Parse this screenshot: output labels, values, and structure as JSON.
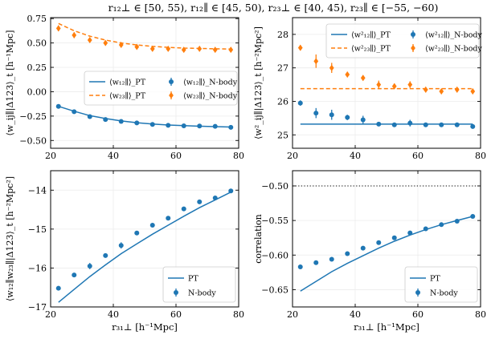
{
  "figure_title": "r₁₂⊥ ∈ [50, 55), r₁₂∥ ∈ [45, 50), r₂₃⊥ ∈ [40, 45), r₂₃∥ ∈ [−55, −60)",
  "colors": {
    "blue": "#1f77b4",
    "orange": "#ff7f0e",
    "grid": "#ececec",
    "axis": "#000000"
  },
  "chart_data": [
    {
      "id": "top-left",
      "type": "line",
      "ylabel": "⟨w_ij∥|Δ123⟩_t  [h⁻¹Mpc]",
      "xlabel": "",
      "xlim": [
        20,
        80
      ],
      "ylim": [
        -0.58,
        0.76
      ],
      "xticks": [
        20,
        40,
        60,
        80
      ],
      "xtick_labels": [
        "20",
        "40",
        "60",
        "80"
      ],
      "yticks": [
        -0.5,
        -0.25,
        0.0,
        0.25,
        0.5,
        0.75
      ],
      "ytick_labels": [
        "−0.50",
        "−0.25",
        "0.00",
        "0.25",
        "0.50",
        "0.75"
      ],
      "grid": true,
      "legend_position": "center-right",
      "legend_columns": 2,
      "x": [
        22.5,
        27.5,
        32.5,
        37.5,
        42.5,
        47.5,
        52.5,
        57.5,
        62.5,
        67.5,
        72.5,
        77.5
      ],
      "series": [
        {
          "name": "⟨w₁₂∥⟩_PT",
          "kind": "line",
          "dash": "solid",
          "color": "#1f77b4",
          "x": [
            22.5,
            27.5,
            32.5,
            37.5,
            42.5,
            47.5,
            52.5,
            57.5,
            62.5,
            67.5,
            72.5,
            77.5
          ],
          "values": [
            -0.15,
            -0.2,
            -0.245,
            -0.275,
            -0.3,
            -0.318,
            -0.332,
            -0.342,
            -0.348,
            -0.354,
            -0.358,
            -0.362
          ]
        },
        {
          "name": "⟨w₂₃∥⟩_PT",
          "kind": "line",
          "dash": "dashed",
          "color": "#ff7f0e",
          "x": [
            22.5,
            27.5,
            32.5,
            37.5,
            42.5,
            47.5,
            52.5,
            57.5,
            62.5,
            67.5,
            72.5,
            77.5
          ],
          "values": [
            0.7,
            0.625,
            0.57,
            0.53,
            0.5,
            0.48,
            0.465,
            0.455,
            0.448,
            0.444,
            0.44,
            0.438
          ]
        },
        {
          "name": "⟨w₁₂∥⟩_N-body",
          "kind": "points",
          "marker": "circle",
          "color": "#1f77b4",
          "x": [
            22.5,
            27.5,
            32.5,
            37.5,
            42.5,
            47.5,
            52.5,
            57.5,
            62.5,
            67.5,
            72.5,
            77.5
          ],
          "values": [
            -0.15,
            -0.205,
            -0.255,
            -0.285,
            -0.305,
            -0.32,
            -0.335,
            -0.345,
            -0.35,
            -0.352,
            -0.355,
            -0.365
          ],
          "errors": [
            0.012,
            0.012,
            0.012,
            0.012,
            0.012,
            0.012,
            0.012,
            0.012,
            0.012,
            0.012,
            0.012,
            0.012
          ]
        },
        {
          "name": "⟨w₂₃∥⟩_N-body",
          "kind": "points",
          "marker": "diamond",
          "color": "#ff7f0e",
          "x": [
            22.5,
            27.5,
            32.5,
            37.5,
            42.5,
            47.5,
            52.5,
            57.5,
            62.5,
            67.5,
            72.5,
            77.5
          ],
          "values": [
            0.65,
            0.58,
            0.53,
            0.5,
            0.48,
            0.46,
            0.44,
            0.44,
            0.43,
            0.44,
            0.43,
            0.43
          ],
          "errors": [
            0.03,
            0.03,
            0.025,
            0.025,
            0.025,
            0.02,
            0.02,
            0.02,
            0.02,
            0.02,
            0.02,
            0.02
          ]
        }
      ]
    },
    {
      "id": "top-right",
      "type": "line",
      "ylabel": "⟨w²_ij∥|Δ123⟩_t  [h⁻²Mpc²]",
      "xlabel": "",
      "xlim": [
        20,
        80
      ],
      "ylim": [
        24.6,
        28.5
      ],
      "xticks": [
        20,
        40,
        60,
        80
      ],
      "xtick_labels": [
        "20",
        "40",
        "60",
        "80"
      ],
      "yticks": [
        25,
        26,
        27,
        28
      ],
      "ytick_labels": [
        "25",
        "26",
        "27",
        "28"
      ],
      "grid": true,
      "legend_position": "top-right",
      "legend_columns": 2,
      "x": [
        22.5,
        27.5,
        32.5,
        37.5,
        42.5,
        47.5,
        52.5,
        57.5,
        62.5,
        67.5,
        72.5,
        77.5
      ],
      "series": [
        {
          "name": "⟨w²₁₂∥⟩_PT",
          "kind": "line",
          "dash": "solid",
          "color": "#1f77b4",
          "x": [
            22.5,
            77.5
          ],
          "values": [
            25.32,
            25.32
          ]
        },
        {
          "name": "⟨w²₂₃∥⟩_PT",
          "kind": "line",
          "dash": "dashed",
          "color": "#ff7f0e",
          "x": [
            22.5,
            77.5
          ],
          "values": [
            26.38,
            26.38
          ]
        },
        {
          "name": "⟨w²₁₂∥⟩_N-body",
          "kind": "points",
          "marker": "circle",
          "color": "#1f77b4",
          "x": [
            22.5,
            27.5,
            32.5,
            37.5,
            42.5,
            47.5,
            52.5,
            57.5,
            62.5,
            67.5,
            72.5,
            77.5
          ],
          "values": [
            25.95,
            25.65,
            25.6,
            25.52,
            25.45,
            25.32,
            25.3,
            25.35,
            25.3,
            25.3,
            25.3,
            25.25
          ],
          "errors": [
            0.08,
            0.15,
            0.15,
            0.08,
            0.12,
            0.05,
            0.05,
            0.1,
            0.05,
            0.05,
            0.05,
            0.05
          ]
        },
        {
          "name": "⟨w²₂₃∥⟩_N-body",
          "kind": "points",
          "marker": "diamond",
          "color": "#ff7f0e",
          "x": [
            22.5,
            27.5,
            32.5,
            37.5,
            42.5,
            47.5,
            52.5,
            57.5,
            62.5,
            67.5,
            72.5,
            77.5
          ],
          "values": [
            27.6,
            27.2,
            27.0,
            26.8,
            26.7,
            26.5,
            26.45,
            26.5,
            26.35,
            26.3,
            26.35,
            26.3
          ],
          "errors": [
            0.08,
            0.2,
            0.15,
            0.08,
            0.08,
            0.12,
            0.08,
            0.1,
            0.08,
            0.08,
            0.08,
            0.08
          ]
        }
      ]
    },
    {
      "id": "bottom-left",
      "type": "line",
      "ylabel": "⟨w₁₂∥w₂₃∥|Δ123⟩_t  [h⁻²Mpc²]",
      "xlabel": "r₃₁⊥  [h⁻¹Mpc]",
      "xlim": [
        20,
        80
      ],
      "ylim": [
        -17.0,
        -13.5
      ],
      "xticks": [
        20,
        40,
        60,
        80
      ],
      "xtick_labels": [
        "20",
        "40",
        "60",
        "80"
      ],
      "yticks": [
        -17,
        -16,
        -15,
        -14
      ],
      "ytick_labels": [
        "−17",
        "−16",
        "−15",
        "−14"
      ],
      "grid": true,
      "legend_position": "bottom-right",
      "legend_columns": 1,
      "x": [
        22.5,
        27.5,
        32.5,
        37.5,
        42.5,
        47.5,
        52.5,
        57.5,
        62.5,
        67.5,
        72.5,
        77.5
      ],
      "series": [
        {
          "name": "PT",
          "kind": "line",
          "dash": "solid",
          "color": "#1f77b4",
          "x": [
            22.5,
            27.5,
            32.5,
            37.5,
            42.5,
            47.5,
            52.5,
            57.5,
            62.5,
            67.5,
            72.5,
            77.5
          ],
          "values": [
            -16.88,
            -16.55,
            -16.22,
            -15.92,
            -15.63,
            -15.38,
            -15.13,
            -14.9,
            -14.67,
            -14.45,
            -14.25,
            -14.05
          ]
        },
        {
          "name": "N-body",
          "kind": "points",
          "marker": "circle",
          "color": "#1f77b4",
          "x": [
            22.5,
            27.5,
            32.5,
            37.5,
            42.5,
            47.5,
            52.5,
            57.5,
            62.5,
            67.5,
            72.5,
            77.5
          ],
          "values": [
            -16.52,
            -16.18,
            -15.95,
            -15.68,
            -15.42,
            -15.1,
            -14.9,
            -14.72,
            -14.48,
            -14.3,
            -14.2,
            -14.02
          ],
          "errors": [
            0.05,
            0.05,
            0.08,
            0.05,
            0.08,
            0.05,
            0.05,
            0.05,
            0.05,
            0.05,
            0.05,
            0.05
          ]
        }
      ]
    },
    {
      "id": "bottom-right",
      "type": "line",
      "ylabel": "correlation",
      "xlabel": "r₃₁⊥  [h⁻¹Mpc]",
      "xlim": [
        20,
        80
      ],
      "ylim": [
        -0.675,
        -0.478
      ],
      "xticks": [
        20,
        40,
        60,
        80
      ],
      "xtick_labels": [
        "20",
        "40",
        "60",
        "80"
      ],
      "yticks": [
        -0.65,
        -0.6,
        -0.55,
        -0.5
      ],
      "ytick_labels": [
        "−0.65",
        "−0.60",
        "−0.55",
        "−0.50"
      ],
      "grid": true,
      "legend_position": "bottom-right",
      "legend_columns": 1,
      "reference_line": -0.5,
      "x": [
        22.5,
        27.5,
        32.5,
        37.5,
        42.5,
        47.5,
        52.5,
        57.5,
        62.5,
        67.5,
        72.5,
        77.5
      ],
      "series": [
        {
          "name": "PT",
          "kind": "line",
          "dash": "solid",
          "color": "#1f77b4",
          "x": [
            22.5,
            27.5,
            32.5,
            37.5,
            42.5,
            47.5,
            52.5,
            57.5,
            62.5,
            67.5,
            72.5,
            77.5
          ],
          "values": [
            -0.652,
            -0.638,
            -0.624,
            -0.612,
            -0.601,
            -0.59,
            -0.58,
            -0.571,
            -0.563,
            -0.556,
            -0.55,
            -0.544
          ]
        },
        {
          "name": "N-body",
          "kind": "points",
          "marker": "circle",
          "color": "#1f77b4",
          "x": [
            22.5,
            27.5,
            32.5,
            37.5,
            42.5,
            47.5,
            52.5,
            57.5,
            62.5,
            67.5,
            72.5,
            77.5
          ],
          "values": [
            -0.617,
            -0.611,
            -0.606,
            -0.598,
            -0.59,
            -0.582,
            -0.575,
            -0.568,
            -0.562,
            -0.556,
            -0.551,
            -0.544
          ],
          "errors": [
            0.002,
            0.002,
            0.002,
            0.002,
            0.002,
            0.002,
            0.002,
            0.002,
            0.002,
            0.002,
            0.002,
            0.002
          ]
        }
      ]
    }
  ]
}
